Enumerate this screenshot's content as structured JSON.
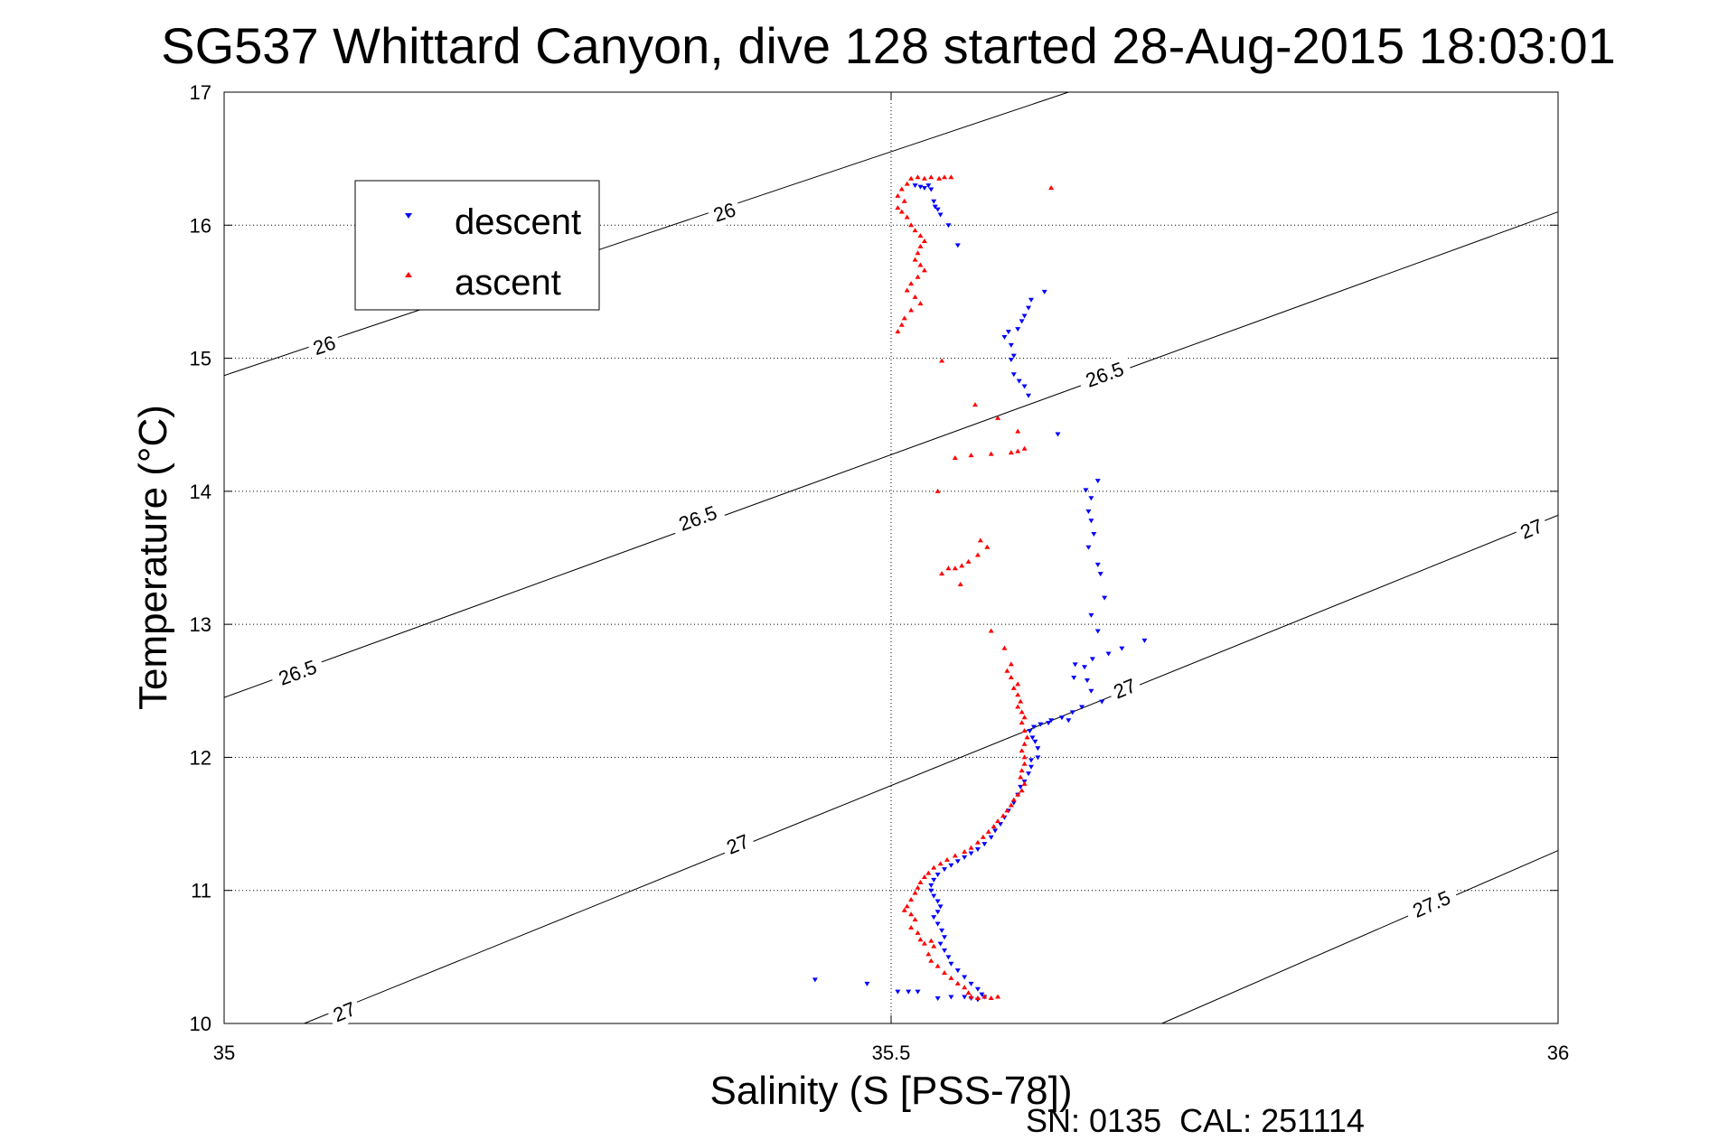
{
  "chart_data": {
    "type": "scatter",
    "title": "SG537 Whittard Canyon, dive 128 started 28-Aug-2015 18:03:01",
    "xlabel": "Salinity (S [PSS-78])",
    "ylabel": "Temperature (°C)",
    "xlim": [
      35,
      36
    ],
    "ylim": [
      10,
      17
    ],
    "x_ticks": [
      35,
      35.5,
      36
    ],
    "y_ticks": [
      10,
      11,
      12,
      13,
      14,
      15,
      16,
      17
    ],
    "x_tick_labels": [
      "35",
      "35.5",
      "36"
    ],
    "y_tick_labels": [
      "10",
      "11",
      "12",
      "13",
      "14",
      "15",
      "16",
      "17"
    ],
    "grid": true,
    "legend_position": "top-left",
    "footer": "SN: 0135  CAL: 251114",
    "contours": [
      {
        "label": "26",
        "points": [
          [
            35,
            14.87
          ],
          [
            35.633,
            17
          ]
        ],
        "label_positions": [
          [
            35.075,
            15.1
          ],
          [
            35.375,
            16.1
          ]
        ]
      },
      {
        "label": "26.5",
        "points": [
          [
            35,
            12.45
          ],
          [
            36,
            16.1
          ]
        ],
        "label_positions": [
          [
            35.055,
            12.64
          ],
          [
            35.355,
            13.8
          ],
          [
            35.66,
            14.88
          ]
        ]
      },
      {
        "label": "27",
        "points": [
          [
            35.06,
            10
          ],
          [
            36,
            13.82
          ]
        ],
        "label_positions": [
          [
            35.09,
            10.09
          ],
          [
            35.385,
            11.35
          ],
          [
            35.675,
            12.52
          ],
          [
            35.98,
            13.72
          ]
        ]
      },
      {
        "label": "27.5",
        "points": [
          [
            35.703,
            10
          ],
          [
            36,
            11.3
          ]
        ],
        "label_positions": [
          [
            35.905,
            10.9
          ]
        ]
      }
    ],
    "series": [
      {
        "name": "descent",
        "color": "#0000ff",
        "marker": "triangle-down",
        "points": [
          [
            35.518,
            16.3
          ],
          [
            35.522,
            16.29
          ],
          [
            35.525,
            16.28
          ],
          [
            35.528,
            16.3
          ],
          [
            35.53,
            16.27
          ],
          [
            35.532,
            16.18
          ],
          [
            35.533,
            16.14
          ],
          [
            35.535,
            16.12
          ],
          [
            35.537,
            16.08
          ],
          [
            35.543,
            16.0
          ],
          [
            35.55,
            15.85
          ],
          [
            35.615,
            15.5
          ],
          [
            35.605,
            15.44
          ],
          [
            35.603,
            15.38
          ],
          [
            35.6,
            15.32
          ],
          [
            35.598,
            15.28
          ],
          [
            35.595,
            15.22
          ],
          [
            35.588,
            15.2
          ],
          [
            35.585,
            15.16
          ],
          [
            35.59,
            15.1
          ],
          [
            35.592,
            15.02
          ],
          [
            35.59,
            14.99
          ],
          [
            35.592,
            14.88
          ],
          [
            35.596,
            14.83
          ],
          [
            35.6,
            14.79
          ],
          [
            35.603,
            14.72
          ],
          [
            35.625,
            14.43
          ],
          [
            35.646,
            14.01
          ],
          [
            35.655,
            14.08
          ],
          [
            35.65,
            13.95
          ],
          [
            35.648,
            13.85
          ],
          [
            35.65,
            13.78
          ],
          [
            35.652,
            13.68
          ],
          [
            35.648,
            13.58
          ],
          [
            35.655,
            13.45
          ],
          [
            35.657,
            13.38
          ],
          [
            35.66,
            13.2
          ],
          [
            35.65,
            13.07
          ],
          [
            35.655,
            12.95
          ],
          [
            35.69,
            12.88
          ],
          [
            35.673,
            12.82
          ],
          [
            35.663,
            12.78
          ],
          [
            35.651,
            12.74
          ],
          [
            35.645,
            12.68
          ],
          [
            35.638,
            12.7
          ],
          [
            35.637,
            12.6
          ],
          [
            35.647,
            12.58
          ],
          [
            35.65,
            12.5
          ],
          [
            35.658,
            12.42
          ],
          [
            35.643,
            12.38
          ],
          [
            35.636,
            12.34
          ],
          [
            35.633,
            12.28
          ],
          [
            35.628,
            12.3
          ],
          [
            35.62,
            12.28
          ],
          [
            35.618,
            12.26
          ],
          [
            35.612,
            12.25
          ],
          [
            35.607,
            12.23
          ],
          [
            35.604,
            12.2
          ],
          [
            35.606,
            12.15
          ],
          [
            35.608,
            12.12
          ],
          [
            35.61,
            12.07
          ],
          [
            35.61,
            12.0
          ],
          [
            35.605,
            11.98
          ],
          [
            35.605,
            11.93
          ],
          [
            35.603,
            11.88
          ],
          [
            35.6,
            11.82
          ],
          [
            35.597,
            11.78
          ],
          [
            35.595,
            11.72
          ],
          [
            35.592,
            11.66
          ],
          [
            35.588,
            11.6
          ],
          [
            35.585,
            11.55
          ],
          [
            35.582,
            11.5
          ],
          [
            35.578,
            11.45
          ],
          [
            35.575,
            11.4
          ],
          [
            35.57,
            11.35
          ],
          [
            35.565,
            11.31
          ],
          [
            35.56,
            11.28
          ],
          [
            35.555,
            11.25
          ],
          [
            35.55,
            11.22
          ],
          [
            35.545,
            11.19
          ],
          [
            35.54,
            11.16
          ],
          [
            35.535,
            11.12
          ],
          [
            35.532,
            11.08
          ],
          [
            35.53,
            11.04
          ],
          [
            35.53,
            11.0
          ],
          [
            35.532,
            10.96
          ],
          [
            35.535,
            10.92
          ],
          [
            35.537,
            10.88
          ],
          [
            35.535,
            10.84
          ],
          [
            35.532,
            10.8
          ],
          [
            35.535,
            10.75
          ],
          [
            35.538,
            10.7
          ],
          [
            35.54,
            10.65
          ],
          [
            35.537,
            10.6
          ],
          [
            35.54,
            10.55
          ],
          [
            35.543,
            10.5
          ],
          [
            35.545,
            10.45
          ],
          [
            35.55,
            10.4
          ],
          [
            35.555,
            10.35
          ],
          [
            35.56,
            10.3
          ],
          [
            35.565,
            10.26
          ],
          [
            35.568,
            10.22
          ],
          [
            35.57,
            10.2
          ],
          [
            35.565,
            10.18
          ],
          [
            35.56,
            10.19
          ],
          [
            35.555,
            10.2
          ],
          [
            35.545,
            10.2
          ],
          [
            35.535,
            10.19
          ],
          [
            35.52,
            10.24
          ],
          [
            35.513,
            10.24
          ],
          [
            35.505,
            10.24
          ],
          [
            35.482,
            10.3
          ],
          [
            35.443,
            10.33
          ]
        ]
      },
      {
        "name": "ascent",
        "color": "#ff0000",
        "marker": "triangle-up",
        "points": [
          [
            35.512,
            16.31
          ],
          [
            35.515,
            16.35
          ],
          [
            35.52,
            16.36
          ],
          [
            35.525,
            16.35
          ],
          [
            35.53,
            16.36
          ],
          [
            35.536,
            16.35
          ],
          [
            35.54,
            16.36
          ],
          [
            35.545,
            16.36
          ],
          [
            35.508,
            16.27
          ],
          [
            35.505,
            16.22
          ],
          [
            35.51,
            16.18
          ],
          [
            35.505,
            16.13
          ],
          [
            35.508,
            16.1
          ],
          [
            35.512,
            16.06
          ],
          [
            35.515,
            16.0
          ],
          [
            35.518,
            15.96
          ],
          [
            35.522,
            15.92
          ],
          [
            35.525,
            15.88
          ],
          [
            35.522,
            15.84
          ],
          [
            35.52,
            15.79
          ],
          [
            35.518,
            15.74
          ],
          [
            35.522,
            15.7
          ],
          [
            35.525,
            15.66
          ],
          [
            35.52,
            15.61
          ],
          [
            35.515,
            15.56
          ],
          [
            35.512,
            15.51
          ],
          [
            35.518,
            15.46
          ],
          [
            35.522,
            15.41
          ],
          [
            35.515,
            15.36
          ],
          [
            35.51,
            15.3
          ],
          [
            35.508,
            15.25
          ],
          [
            35.505,
            15.2
          ],
          [
            35.538,
            14.98
          ],
          [
            35.62,
            16.28
          ],
          [
            35.563,
            14.65
          ],
          [
            35.58,
            14.55
          ],
          [
            35.595,
            14.45
          ],
          [
            35.6,
            14.32
          ],
          [
            35.595,
            14.3
          ],
          [
            35.59,
            14.29
          ],
          [
            35.575,
            14.28
          ],
          [
            35.56,
            14.27
          ],
          [
            35.548,
            14.25
          ],
          [
            35.535,
            14.0
          ],
          [
            35.567,
            13.63
          ],
          [
            35.572,
            13.58
          ],
          [
            35.565,
            13.52
          ],
          [
            35.558,
            13.47
          ],
          [
            35.553,
            13.44
          ],
          [
            35.548,
            13.42
          ],
          [
            35.543,
            13.42
          ],
          [
            35.538,
            13.38
          ],
          [
            35.552,
            13.3
          ],
          [
            35.575,
            12.95
          ],
          [
            35.585,
            12.82
          ],
          [
            35.59,
            12.7
          ],
          [
            35.587,
            12.65
          ],
          [
            35.59,
            12.6
          ],
          [
            35.595,
            12.55
          ],
          [
            35.592,
            12.52
          ],
          [
            35.595,
            12.47
          ],
          [
            35.597,
            12.42
          ],
          [
            35.595,
            12.38
          ],
          [
            35.598,
            12.34
          ],
          [
            35.6,
            12.3
          ],
          [
            35.598,
            12.26
          ],
          [
            35.6,
            12.2
          ],
          [
            35.602,
            12.15
          ],
          [
            35.6,
            12.1
          ],
          [
            35.598,
            12.05
          ],
          [
            35.6,
            12.0
          ],
          [
            35.6,
            11.95
          ],
          [
            35.598,
            11.9
          ],
          [
            35.597,
            11.85
          ],
          [
            35.6,
            11.8
          ],
          [
            35.598,
            11.75
          ],
          [
            35.595,
            11.72
          ],
          [
            35.592,
            11.68
          ],
          [
            35.59,
            11.64
          ],
          [
            35.587,
            11.6
          ],
          [
            35.584,
            11.56
          ],
          [
            35.58,
            11.52
          ],
          [
            35.577,
            11.48
          ],
          [
            35.573,
            11.44
          ],
          [
            35.569,
            11.4
          ],
          [
            35.565,
            11.36
          ],
          [
            35.56,
            11.32
          ],
          [
            35.555,
            11.29
          ],
          [
            35.548,
            11.26
          ],
          [
            35.542,
            11.23
          ],
          [
            35.537,
            11.2
          ],
          [
            35.532,
            11.17
          ],
          [
            35.528,
            11.13
          ],
          [
            35.525,
            11.1
          ],
          [
            35.522,
            11.06
          ],
          [
            35.52,
            11.02
          ],
          [
            35.518,
            10.98
          ],
          [
            35.515,
            10.93
          ],
          [
            35.512,
            10.88
          ],
          [
            35.51,
            10.85
          ],
          [
            35.515,
            10.82
          ],
          [
            35.518,
            10.78
          ],
          [
            35.515,
            10.72
          ],
          [
            35.52,
            10.68
          ],
          [
            35.522,
            10.63
          ],
          [
            35.525,
            10.6
          ],
          [
            35.53,
            10.62
          ],
          [
            35.532,
            10.58
          ],
          [
            35.528,
            10.52
          ],
          [
            35.53,
            10.47
          ],
          [
            35.535,
            10.43
          ],
          [
            35.54,
            10.38
          ],
          [
            35.545,
            10.34
          ],
          [
            35.55,
            10.3
          ],
          [
            35.555,
            10.27
          ],
          [
            35.558,
            10.23
          ],
          [
            35.56,
            10.2
          ],
          [
            35.565,
            10.19
          ],
          [
            35.57,
            10.2
          ],
          [
            35.575,
            10.19
          ],
          [
            35.58,
            10.2
          ]
        ]
      }
    ]
  }
}
